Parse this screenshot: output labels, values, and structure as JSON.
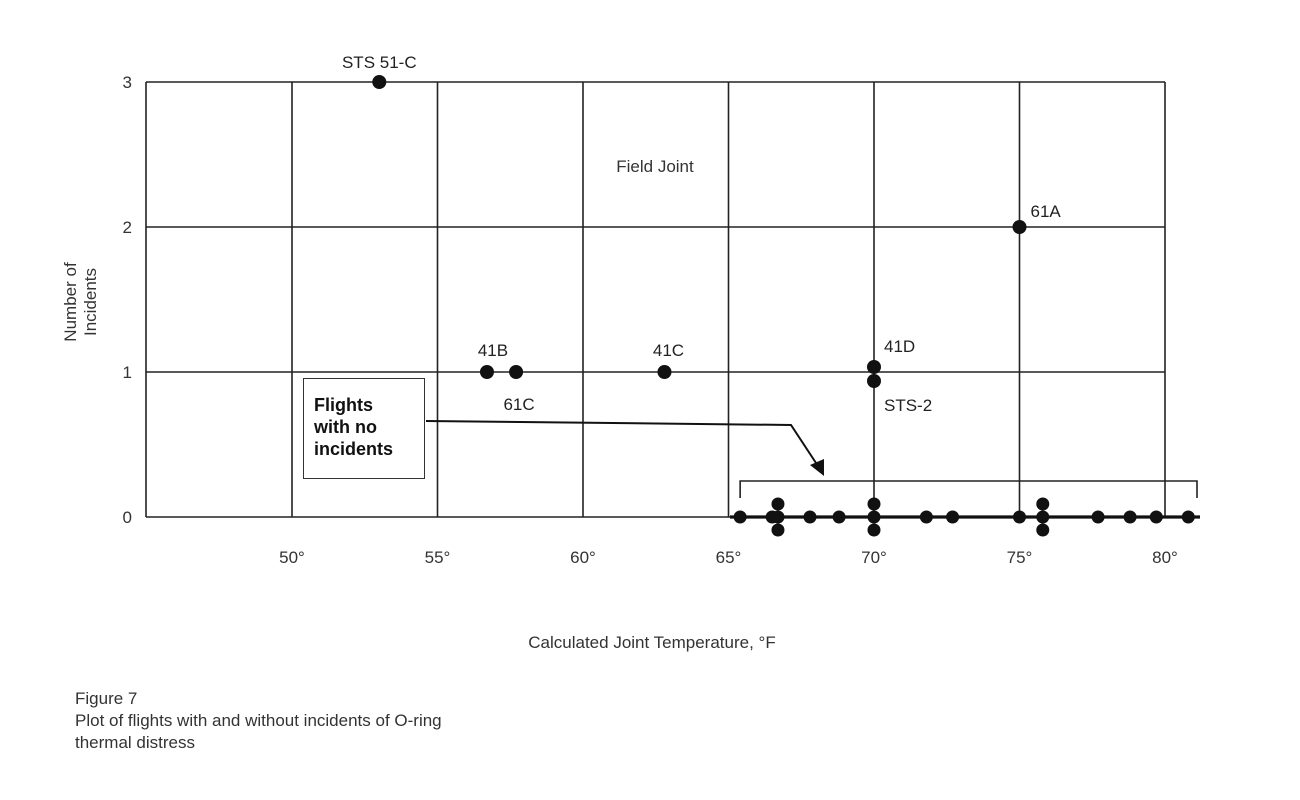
{
  "chart_data": {
    "type": "scatter",
    "title": "Field Joint",
    "xlabel": "Calculated Joint Temperature, °F",
    "ylabel_lines": [
      "Number of",
      "Incidents"
    ],
    "xlim": [
      45,
      82
    ],
    "ylim": [
      0,
      3
    ],
    "x_ticks": [
      {
        "value": 50,
        "label": "50°"
      },
      {
        "value": 55,
        "label": "55°"
      },
      {
        "value": 60,
        "label": "60°"
      },
      {
        "value": 65,
        "label": "65°"
      },
      {
        "value": 70,
        "label": "70°"
      },
      {
        "value": 75,
        "label": "75°"
      },
      {
        "value": 80,
        "label": "80°"
      }
    ],
    "y_ticks": [
      {
        "value": 0,
        "label": "0"
      },
      {
        "value": 1,
        "label": "1"
      },
      {
        "value": 2,
        "label": "2"
      },
      {
        "value": 3,
        "label": "3"
      }
    ],
    "grid": true,
    "incident_points": [
      {
        "x": 53,
        "y": 3,
        "label": "STS 51-C"
      },
      {
        "x": 56.7,
        "y": 1,
        "label": "41B"
      },
      {
        "x": 57.7,
        "y": 1,
        "label": "61C"
      },
      {
        "x": 62.8,
        "y": 1,
        "label": "41C"
      },
      {
        "x": 70,
        "y": 1,
        "label": "41D"
      },
      {
        "x": 70,
        "y": 1,
        "label": "STS-2"
      },
      {
        "x": 75,
        "y": 2,
        "label": "61A"
      }
    ],
    "no_incident_points": [
      {
        "x": 65.4,
        "y": 0
      },
      {
        "x": 66.5,
        "y": 0
      },
      {
        "x": 66.7,
        "y": 0
      },
      {
        "x": 66.7,
        "y": 0
      },
      {
        "x": 66.7,
        "y": 0
      },
      {
        "x": 67.8,
        "y": 0
      },
      {
        "x": 68.8,
        "y": 0
      },
      {
        "x": 70,
        "y": 0
      },
      {
        "x": 70,
        "y": 0
      },
      {
        "x": 70,
        "y": 0
      },
      {
        "x": 71.8,
        "y": 0
      },
      {
        "x": 72.7,
        "y": 0
      },
      {
        "x": 75,
        "y": 0
      },
      {
        "x": 75.8,
        "y": 0
      },
      {
        "x": 75.8,
        "y": 0
      },
      {
        "x": 75.8,
        "y": 0
      },
      {
        "x": 77.7,
        "y": 0
      },
      {
        "x": 78.8,
        "y": 0
      },
      {
        "x": 79.7,
        "y": 0
      },
      {
        "x": 80.8,
        "y": 0
      }
    ],
    "annotation": {
      "lines": [
        "Flights",
        "with no",
        "incidents"
      ],
      "bracket_range": [
        65.4,
        81.1
      ]
    }
  },
  "caption": {
    "line1": "Figure 7",
    "line2": "Plot of flights with and without incidents of O-ring",
    "line3": "thermal distress"
  }
}
